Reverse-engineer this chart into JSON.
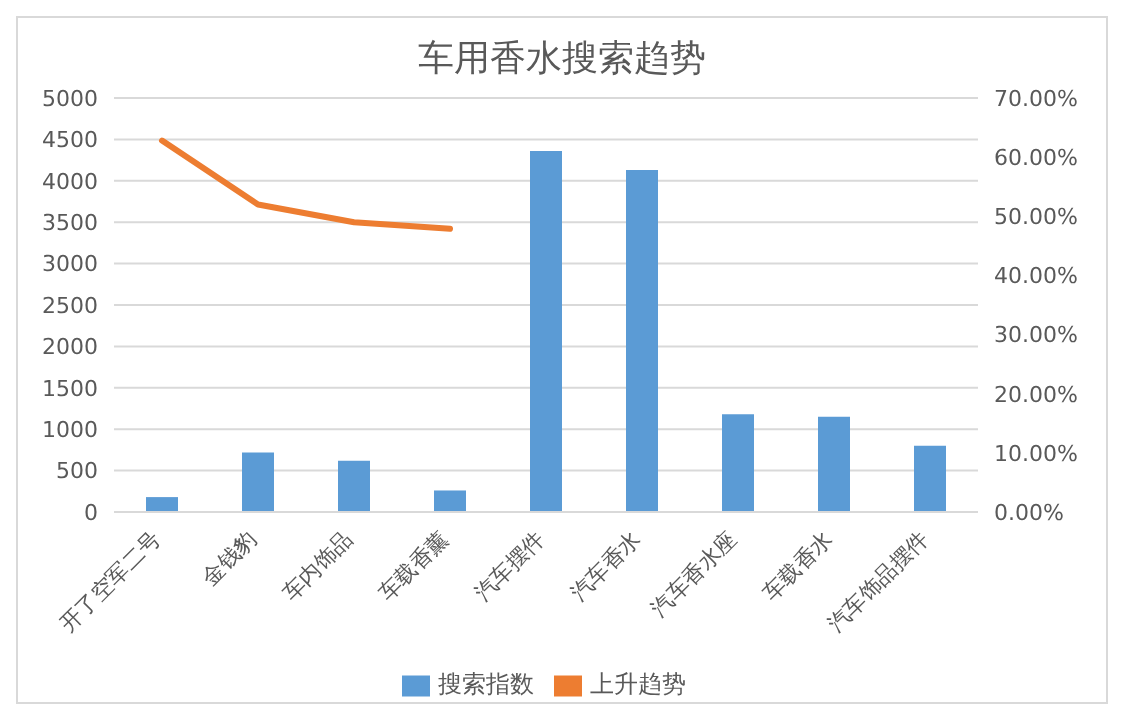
{
  "chart_data": {
    "type": "bar",
    "title": "车用香水搜索趋势",
    "categories": [
      "开了空军二号",
      "金钱豹",
      "车内饰品",
      "车载香薰",
      "汽车摆件",
      "汽车香水",
      "汽车香水座",
      "车载香水",
      "汽车饰品摆件"
    ],
    "series": [
      {
        "name": "搜索指数",
        "color": "#5b9bd5",
        "values": [
          180,
          720,
          620,
          260,
          4360,
          4130,
          1180,
          1150,
          800
        ]
      },
      {
        "name": "上升趋势",
        "type": "line",
        "axis": "y2",
        "color": "#ed7d31",
        "values": [
          62.8,
          52.0,
          49.0,
          47.9,
          null,
          null,
          null,
          null,
          null
        ]
      }
    ],
    "ylim": [
      0,
      5000
    ],
    "yticks": [
      0,
      500,
      1000,
      1500,
      2000,
      2500,
      3000,
      3500,
      4000,
      4500,
      5000
    ],
    "y2lim": [
      0,
      70
    ],
    "y2ticks": [
      {
        "value": 0,
        "label": "0.00%"
      },
      {
        "value": 10,
        "label": "10.00%"
      },
      {
        "value": 20,
        "label": "20.00%"
      },
      {
        "value": 30,
        "label": "30.00%"
      },
      {
        "value": 40,
        "label": "40.00%"
      },
      {
        "value": 50,
        "label": "50.00%"
      },
      {
        "value": 60,
        "label": "60.00%"
      },
      {
        "value": 70,
        "label": "70.00%"
      }
    ],
    "grid": "y",
    "legend": "bottom",
    "marker": "none"
  }
}
